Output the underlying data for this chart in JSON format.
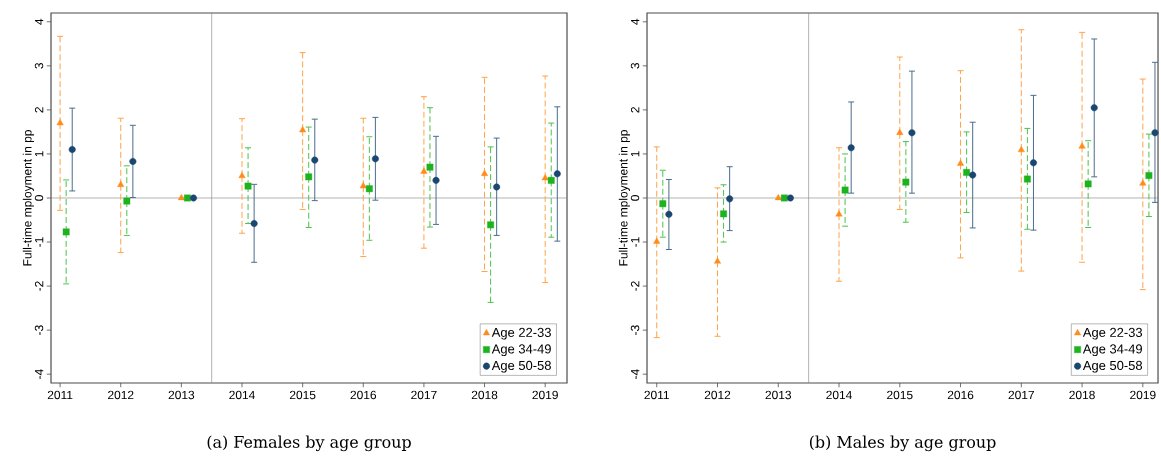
{
  "chart_data": [
    {
      "type": "scatter",
      "title": "(a) Females by age group",
      "ylabel": "Full-time mployment in pp",
      "xlim": [
        2010.85,
        2019.36
      ],
      "ylim": [
        -4.2,
        4.2
      ],
      "xticks": [
        2011,
        2012,
        2013,
        2014,
        2015,
        2016,
        2017,
        2018,
        2019
      ],
      "yticks": [
        -4,
        -3,
        -2,
        -1,
        0,
        1,
        2,
        3,
        4
      ],
      "grid": false,
      "legend": "bottom right",
      "ref_lines": [
        {
          "axis": "x",
          "value": 2013.5,
          "color": "#808080"
        },
        {
          "axis": "y",
          "value": 0,
          "color": "#808080"
        }
      ],
      "series": [
        {
          "name": "Age 22-33",
          "color": "#ff8c1a",
          "marker": "triangle",
          "line_style": "dashed",
          "x": [
            2011,
            2012,
            2013,
            2014,
            2015,
            2016,
            2017,
            2018,
            2019
          ],
          "values": [
            1.7,
            0.3,
            0,
            0.5,
            1.54,
            0.27,
            0.6,
            0.55,
            0.45
          ],
          "errors": [
            [
              -0.28,
              3.67
            ],
            [
              -1.24,
              1.81
            ],
            null,
            [
              -0.8,
              1.8
            ],
            [
              -0.26,
              3.3
            ],
            [
              -1.33,
              1.81
            ],
            [
              -1.14,
              2.3
            ],
            [
              -1.67,
              2.74
            ],
            [
              -1.92,
              2.77
            ]
          ]
        },
        {
          "name": "Age 34-49",
          "color": "#1fb21f",
          "marker": "square",
          "line_style": "dashed",
          "x": [
            2011.1,
            2012.1,
            2013.1,
            2014.1,
            2015.1,
            2016.1,
            2017.1,
            2018.1,
            2019.1
          ],
          "values": [
            -0.77,
            -0.07,
            0,
            0.27,
            0.48,
            0.21,
            0.7,
            -0.61,
            0.4
          ],
          "errors": [
            [
              -1.95,
              0.41
            ],
            [
              -0.85,
              0.73
            ],
            null,
            [
              -0.58,
              1.14
            ],
            [
              -0.67,
              1.61
            ],
            [
              -0.96,
              1.39
            ],
            [
              -0.66,
              2.05
            ],
            [
              -2.37,
              1.16
            ],
            [
              -0.89,
              1.7
            ]
          ]
        },
        {
          "name": "Age 50-58",
          "color": "#1a476f",
          "marker": "circle",
          "line_style": "solid",
          "x": [
            2011.2,
            2012.2,
            2013.2,
            2014.2,
            2015.2,
            2016.2,
            2017.2,
            2018.2,
            2019.2
          ],
          "values": [
            1.1,
            0.83,
            0,
            -0.58,
            0.86,
            0.89,
            0.4,
            0.25,
            0.55
          ],
          "errors": [
            [
              0.16,
              2.04
            ],
            [
              0.01,
              1.65
            ],
            null,
            [
              -1.46,
              0.31
            ],
            [
              -0.06,
              1.79
            ],
            [
              -0.05,
              1.83
            ],
            [
              -0.6,
              1.4
            ],
            [
              -0.85,
              1.36
            ],
            [
              -0.98,
              2.07
            ]
          ]
        }
      ]
    },
    {
      "type": "scatter",
      "title": "(b) Males by age group",
      "ylabel": "Full-time mployment in pp",
      "xlim": [
        2010.84,
        2019.25
      ],
      "ylim": [
        -4.2,
        4.2
      ],
      "xticks": [
        2011,
        2012,
        2013,
        2014,
        2015,
        2016,
        2017,
        2018,
        2019
      ],
      "yticks": [
        -4,
        -3,
        -2,
        -1,
        0,
        1,
        2,
        3,
        4
      ],
      "grid": false,
      "legend": "bottom right",
      "ref_lines": [
        {
          "axis": "x",
          "value": 2013.5,
          "color": "#808080"
        },
        {
          "axis": "y",
          "value": 0,
          "color": "#808080"
        }
      ],
      "series": [
        {
          "name": "Age 22-33",
          "color": "#ff8c1a",
          "marker": "triangle",
          "line_style": "dashed",
          "x": [
            2011,
            2012,
            2013,
            2014,
            2015,
            2016,
            2017,
            2018,
            2019
          ],
          "values": [
            -0.99,
            -1.44,
            0,
            -0.37,
            1.48,
            0.78,
            1.09,
            1.17,
            0.33
          ],
          "errors": [
            [
              -3.17,
              1.16
            ],
            [
              -3.14,
              0.23
            ],
            null,
            [
              -1.89,
              1.14
            ],
            [
              -0.26,
              3.2
            ],
            [
              -1.36,
              2.89
            ],
            [
              -1.66,
              3.82
            ],
            [
              -1.46,
              3.76
            ],
            [
              -2.08,
              2.7
            ]
          ]
        },
        {
          "name": "Age 34-49",
          "color": "#1fb21f",
          "marker": "square",
          "line_style": "dashed",
          "x": [
            2011.1,
            2012.1,
            2013.1,
            2014.1,
            2015.1,
            2016.1,
            2017.1,
            2018.1,
            2019.1
          ],
          "values": [
            -0.13,
            -0.36,
            0,
            0.18,
            0.36,
            0.58,
            0.43,
            0.32,
            0.51
          ],
          "errors": [
            [
              -0.89,
              0.63
            ],
            [
              -1.0,
              0.3
            ],
            null,
            [
              -0.64,
              1.0
            ],
            [
              -0.55,
              1.28
            ],
            [
              -0.33,
              1.5
            ],
            [
              -0.71,
              1.58
            ],
            [
              -0.67,
              1.3
            ],
            [
              -0.42,
              1.45
            ]
          ]
        },
        {
          "name": "Age 50-58",
          "color": "#1a476f",
          "marker": "circle",
          "line_style": "solid",
          "x": [
            2011.2,
            2012.2,
            2013.2,
            2014.2,
            2015.2,
            2016.2,
            2017.2,
            2018.2,
            2019.2
          ],
          "values": [
            -0.37,
            -0.02,
            0,
            1.14,
            1.48,
            0.52,
            0.8,
            2.05,
            1.48
          ],
          "errors": [
            [
              -1.17,
              0.42
            ],
            [
              -0.74,
              0.71
            ],
            null,
            [
              0.11,
              2.18
            ],
            [
              0.11,
              2.88
            ],
            [
              -0.68,
              1.72
            ],
            [
              -0.73,
              2.33
            ],
            [
              0.48,
              3.61
            ],
            [
              -0.1,
              3.08
            ]
          ]
        }
      ]
    }
  ]
}
